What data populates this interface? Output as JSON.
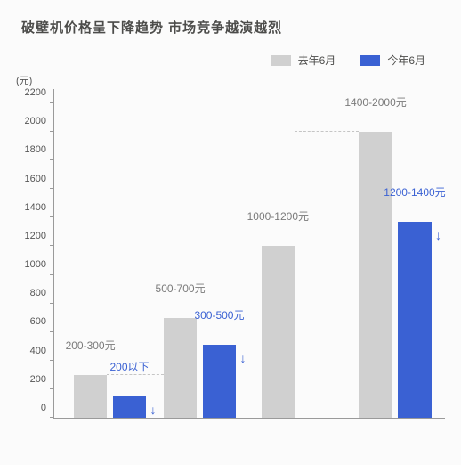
{
  "title": "破壁机价格呈下降趋势  市场竞争越演越烈",
  "legend": {
    "last": "去年6月",
    "this": "今年6月"
  },
  "colors": {
    "last": "#d0d0d0",
    "this": "#3a61d3",
    "text_last": "#7a7a7a",
    "text_this": "#3a61d3",
    "background": "#fbfbfb",
    "dash": "#c5c5c5"
  },
  "chart": {
    "type": "bar",
    "y_unit": "(元)",
    "ymin": 0,
    "ymax": 2300,
    "ytick_step": 200,
    "bar_width_pct": 8.5,
    "gap_in_group_pct": 1.5,
    "group_positions_pct": [
      5,
      28,
      53,
      78
    ],
    "groups": [
      {
        "last_value": 300,
        "last_label": "200-300元",
        "this_value": 150,
        "this_label": "200以下",
        "dash_to_group": 1
      },
      {
        "last_value": 700,
        "last_label": "500-700元",
        "this_value": 510,
        "this_label": "300-500元",
        "dash_to_group": null
      },
      {
        "last_value": 1200,
        "last_label": "1000-1200元",
        "this_value": null,
        "this_label": null,
        "dash_to_group": null
      },
      {
        "last_value": 2000,
        "last_label": "1400-2000元",
        "this_value": 1370,
        "this_label": "1200-1400元",
        "dash_to_group": null
      }
    ],
    "dash_this_from_1_to_3": true
  }
}
